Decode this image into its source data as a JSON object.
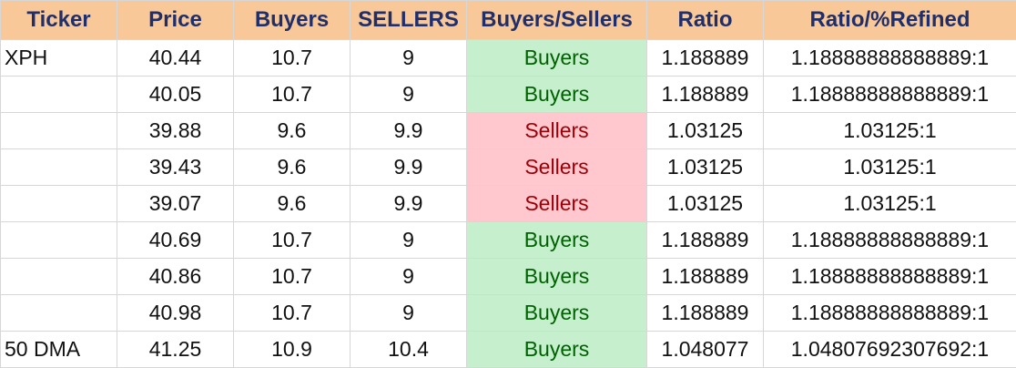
{
  "columns": [
    "Ticker",
    "Price",
    "Buyers",
    "SELLERS",
    "Buyers/Sellers",
    "Ratio",
    "Ratio/%Refined"
  ],
  "rows": [
    {
      "ticker": "XPH",
      "price": "40.44",
      "buyers": "10.7",
      "sellers": "9",
      "bs": "Buyers",
      "ratio": "1.188889",
      "refined": "1.18888888888889:1"
    },
    {
      "ticker": "",
      "price": "40.05",
      "buyers": "10.7",
      "sellers": "9",
      "bs": "Buyers",
      "ratio": "1.188889",
      "refined": "1.18888888888889:1"
    },
    {
      "ticker": "",
      "price": "39.88",
      "buyers": "9.6",
      "sellers": "9.9",
      "bs": "Sellers",
      "ratio": "1.03125",
      "refined": "1.03125:1"
    },
    {
      "ticker": "",
      "price": "39.43",
      "buyers": "9.6",
      "sellers": "9.9",
      "bs": "Sellers",
      "ratio": "1.03125",
      "refined": "1.03125:1"
    },
    {
      "ticker": "",
      "price": "39.07",
      "buyers": "9.6",
      "sellers": "9.9",
      "bs": "Sellers",
      "ratio": "1.03125",
      "refined": "1.03125:1"
    },
    {
      "ticker": "",
      "price": "40.69",
      "buyers": "10.7",
      "sellers": "9",
      "bs": "Buyers",
      "ratio": "1.188889",
      "refined": "1.18888888888889:1"
    },
    {
      "ticker": "",
      "price": "40.86",
      "buyers": "10.7",
      "sellers": "9",
      "bs": "Buyers",
      "ratio": "1.188889",
      "refined": "1.18888888888889:1"
    },
    {
      "ticker": "",
      "price": "40.98",
      "buyers": "10.7",
      "sellers": "9",
      "bs": "Buyers",
      "ratio": "1.188889",
      "refined": "1.18888888888889:1"
    },
    {
      "ticker": "50 DMA",
      "price": "41.25",
      "buyers": "10.9",
      "sellers": "10.4",
      "bs": "Buyers",
      "ratio": "1.048077",
      "refined": "1.04807692307692:1"
    }
  ],
  "colors": {
    "header_bg": "#f9c898",
    "header_text": "#1f2f6b",
    "buyers_bg": "#c6efce",
    "buyers_text": "#006100",
    "sellers_bg": "#ffc7ce",
    "sellers_text": "#9c0006"
  }
}
